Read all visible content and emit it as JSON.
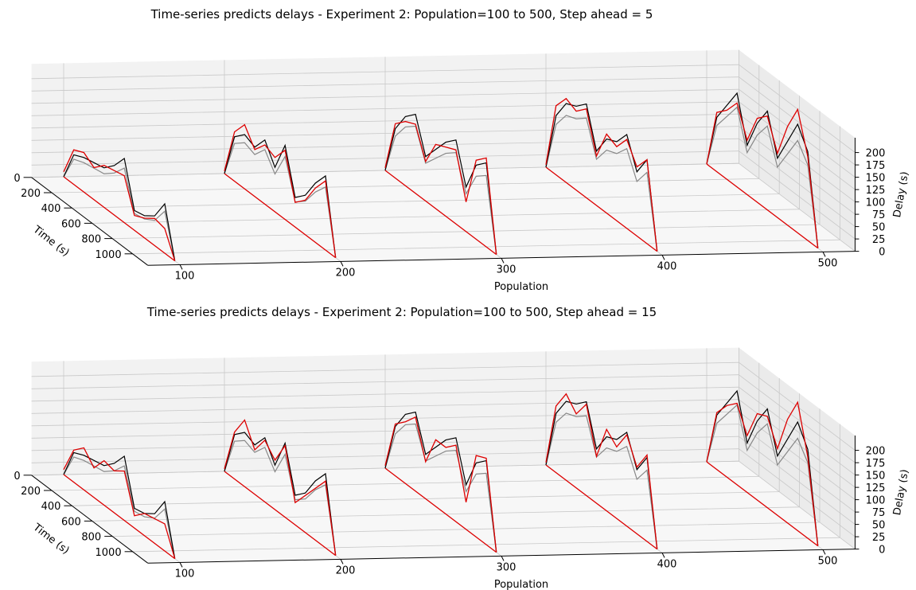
{
  "chart_data": [
    {
      "type": "line",
      "projection": "3d",
      "title": "Time-series predicts delays - Experiment 2: Population=100 to 500, Step ahead = 5",
      "xlabel": "Population",
      "ylabel": "Time (s)",
      "zlabel": "Delay (s)",
      "x_ticks": [
        "100",
        "200",
        "300",
        "400",
        "500"
      ],
      "y_ticks": [
        "0",
        "200",
        "400",
        "600",
        "800",
        "1000"
      ],
      "z_ticks": [
        "0",
        "25",
        "50",
        "75",
        "100",
        "125",
        "150",
        "175",
        "200"
      ],
      "zlim": [
        0,
        200
      ],
      "grid": true,
      "time": [
        0,
        100,
        200,
        300,
        400,
        500,
        600,
        700,
        800,
        900,
        1000,
        1100
      ],
      "colors": {
        "actual": "#000000",
        "predicted": "#dd0000",
        "secondary": "#888888"
      },
      "series": [
        {
          "population": 100,
          "actual": [
            0,
            60,
            70,
            75,
            80,
            100,
            130,
            40,
            45,
            60,
            100,
            0
          ],
          "predicted": [
            10,
            70,
            80,
            65,
            85,
            90,
            95,
            30,
            40,
            55,
            50,
            0
          ]
        },
        {
          "population": 200,
          "actual": [
            0,
            90,
            110,
            100,
            130,
            90,
            150,
            60,
            80,
            120,
            150,
            0
          ],
          "predicted": [
            5,
            100,
            130,
            95,
            120,
            110,
            140,
            50,
            70,
            110,
            140,
            0
          ]
        },
        {
          "population": 300,
          "actual": [
            0,
            100,
            140,
            160,
            90,
            120,
            150,
            170,
            90,
            150,
            170,
            0
          ],
          "predicted": [
            5,
            110,
            130,
            140,
            80,
            130,
            140,
            150,
            60,
            160,
            180,
            0
          ]
        },
        {
          "population": 400,
          "actual": [
            0,
            120,
            160,
            170,
            190,
            110,
            150,
            160,
            190,
            130,
            170,
            0
          ],
          "predicted": [
            5,
            140,
            170,
            160,
            180,
            100,
            160,
            150,
            180,
            140,
            170,
            0
          ]
        },
        {
          "population": 500,
          "actual": [
            0,
            110,
            150,
            190,
            100,
            160,
            200,
            120,
            170,
            220,
            180,
            0
          ],
          "predicted": [
            0,
            120,
            140,
            170,
            110,
            170,
            190,
            130,
            200,
            250,
            170,
            0
          ]
        }
      ]
    },
    {
      "type": "line",
      "projection": "3d",
      "title": "Time-series predicts delays - Experiment 2: Population=100 to 500, Step ahead = 15",
      "xlabel": "Population",
      "ylabel": "Time (s)",
      "zlabel": "Delay (s)",
      "x_ticks": [
        "100",
        "200",
        "300",
        "400",
        "500"
      ],
      "y_ticks": [
        "0",
        "200",
        "400",
        "600",
        "800",
        "1000"
      ],
      "z_ticks": [
        "0",
        "25",
        "50",
        "75",
        "100",
        "125",
        "150",
        "175",
        "200"
      ],
      "zlim": [
        0,
        200
      ],
      "grid": true,
      "time": [
        0,
        100,
        200,
        300,
        400,
        500,
        600,
        700,
        800,
        900,
        1000,
        1100
      ],
      "colors": {
        "actual": "#000000",
        "predicted": "#dd0000",
        "secondary": "#888888"
      },
      "series": [
        {
          "population": 100,
          "actual": [
            0,
            60,
            70,
            75,
            80,
            100,
            130,
            40,
            45,
            60,
            100,
            0
          ],
          "predicted": [
            10,
            65,
            85,
            60,
            90,
            85,
            100,
            25,
            45,
            50,
            55,
            0
          ]
        },
        {
          "population": 200,
          "actual": [
            0,
            90,
            110,
            100,
            130,
            90,
            150,
            60,
            80,
            120,
            150,
            0
          ],
          "predicted": [
            5,
            95,
            135,
            90,
            125,
            100,
            145,
            45,
            75,
            105,
            135,
            0
          ]
        },
        {
          "population": 300,
          "actual": [
            0,
            100,
            140,
            160,
            90,
            120,
            150,
            170,
            90,
            150,
            170,
            0
          ],
          "predicted": [
            5,
            105,
            125,
            150,
            75,
            135,
            135,
            155,
            55,
            165,
            175,
            0
          ]
        },
        {
          "population": 400,
          "actual": [
            0,
            120,
            160,
            170,
            190,
            110,
            150,
            160,
            190,
            130,
            170,
            0
          ],
          "predicted": [
            5,
            135,
            175,
            150,
            185,
            95,
            165,
            145,
            185,
            135,
            175,
            0
          ]
        },
        {
          "population": 500,
          "actual": [
            0,
            110,
            150,
            190,
            100,
            160,
            200,
            120,
            170,
            220,
            180,
            0
          ],
          "predicted": [
            0,
            115,
            145,
            165,
            115,
            175,
            185,
            135,
            210,
            260,
            165,
            0
          ]
        }
      ]
    }
  ]
}
